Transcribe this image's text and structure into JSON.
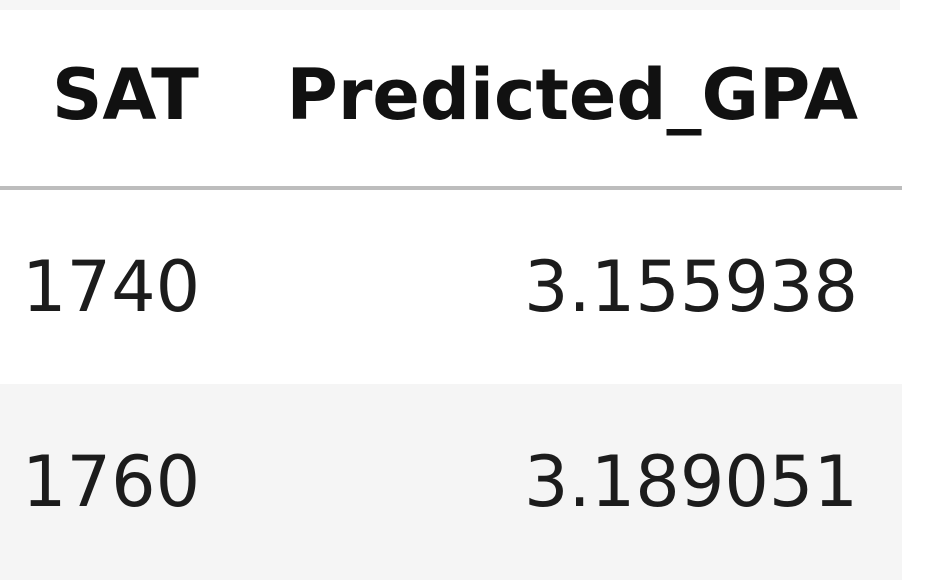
{
  "table": {
    "columns": [
      "SAT",
      "Predicted_GPA"
    ],
    "rows": [
      {
        "sat": "1740",
        "predicted_gpa": "3.155938"
      },
      {
        "sat": "1760",
        "predicted_gpa": "3.189051"
      }
    ]
  }
}
